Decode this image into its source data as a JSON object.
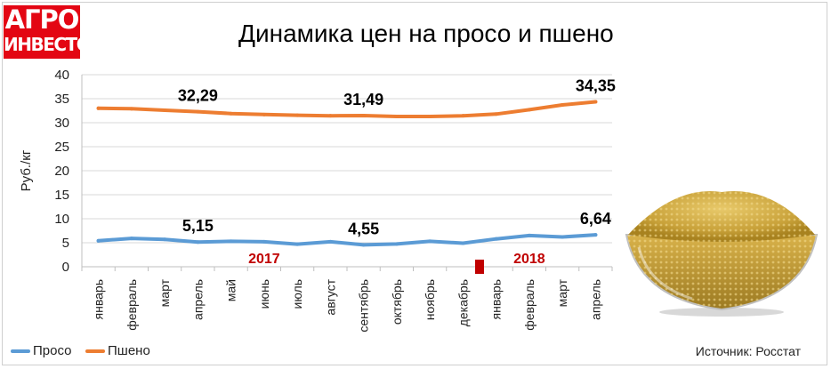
{
  "header": {
    "logo_line1": "АГРО",
    "logo_line2": "ИНВЕСТОР",
    "title": "Динамика цен на просо и пшено"
  },
  "colors": {
    "proso": "#5b9bd5",
    "psheno": "#ed7d31",
    "year_label": "#c00000",
    "logo": "#e30613"
  },
  "footer": {
    "source": "Источник: Росстат"
  },
  "chart_data": {
    "type": "line",
    "title": "Динамика цен на просо и пшено",
    "ylabel": "Руб./кг",
    "xlabel": "",
    "ylim": [
      0,
      40
    ],
    "yticks": [
      0,
      5,
      10,
      15,
      20,
      25,
      30,
      35,
      40
    ],
    "grid": true,
    "legend_position": "bottom-left",
    "categories": [
      "январь",
      "февраль",
      "март",
      "апрель",
      "май",
      "июнь",
      "июль",
      "август",
      "сентябрь",
      "октябрь",
      "ноябрь",
      "декабрь",
      "январь",
      "февраль",
      "март",
      "апрель"
    ],
    "years": [
      {
        "label": "2017",
        "category_index": 5
      },
      {
        "label": "2018",
        "category_index": 13
      }
    ],
    "series": [
      {
        "name": "Просо",
        "color": "#5b9bd5",
        "values": [
          5.4,
          5.9,
          5.7,
          5.15,
          5.3,
          5.2,
          4.7,
          5.2,
          4.55,
          4.75,
          5.3,
          4.9,
          5.8,
          6.5,
          6.2,
          6.64
        ],
        "labels": [
          {
            "index": 3,
            "text": "5,15"
          },
          {
            "index": 8,
            "text": "4,55"
          },
          {
            "index": 15,
            "text": "6,64"
          }
        ]
      },
      {
        "name": "Пшено",
        "color": "#ed7d31",
        "values": [
          33.0,
          32.9,
          32.6,
          32.29,
          31.9,
          31.7,
          31.55,
          31.45,
          31.49,
          31.3,
          31.3,
          31.45,
          31.8,
          32.7,
          33.7,
          34.35
        ],
        "labels": [
          {
            "index": 3,
            "text": "32,29"
          },
          {
            "index": 8,
            "text": "31,49"
          },
          {
            "index": 15,
            "text": "34,35"
          }
        ]
      }
    ]
  }
}
